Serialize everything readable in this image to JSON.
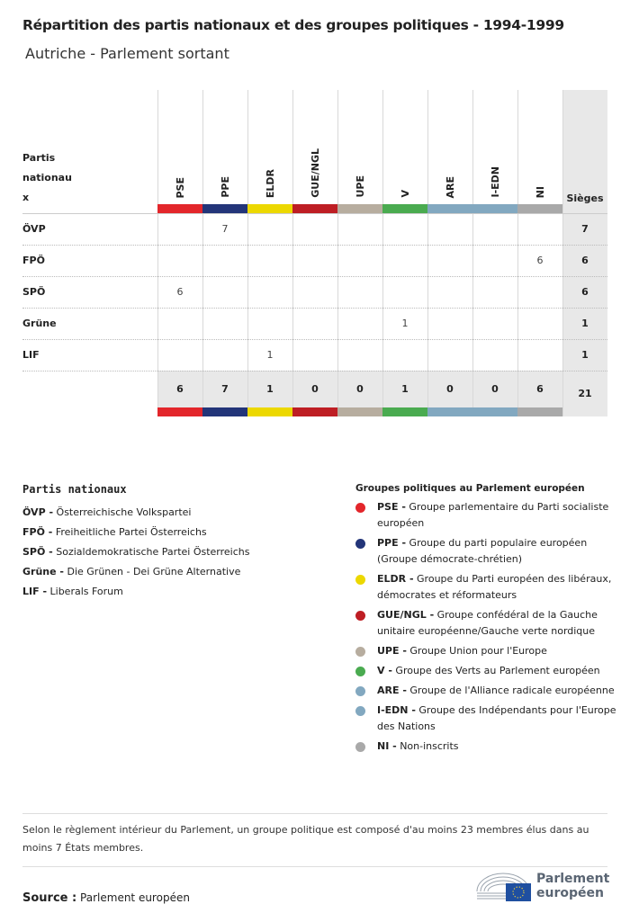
{
  "title": "Répartition des partis nationaux et des groupes politiques - 1994-1999",
  "subtitle": "Autriche - Parlement sortant",
  "table": {
    "row_header": "Partis nationau x",
    "seats_header": "Sièges",
    "groups": [
      {
        "code": "PSE",
        "color": "#e3262b"
      },
      {
        "code": "PPE",
        "color": "#233579"
      },
      {
        "code": "ELDR",
        "color": "#ecd800"
      },
      {
        "code": "GUE/NGL",
        "color": "#be1e24"
      },
      {
        "code": "UPE",
        "color": "#b7ad9f"
      },
      {
        "code": "V",
        "color": "#4aab50"
      },
      {
        "code": "ARE",
        "color": "#82a8c0"
      },
      {
        "code": "I-EDN",
        "color": "#82a8c0"
      },
      {
        "code": "NI",
        "color": "#a9a9a9"
      }
    ],
    "rows": [
      {
        "party": "ÖVP",
        "values": [
          "",
          "7",
          "",
          "",
          "",
          "",
          "",
          "",
          ""
        ],
        "seats": "7"
      },
      {
        "party": "FPÖ",
        "values": [
          "",
          "",
          "",
          "",
          "",
          "",
          "",
          "",
          "6"
        ],
        "seats": "6"
      },
      {
        "party": "SPÖ",
        "values": [
          "6",
          "",
          "",
          "",
          "",
          "",
          "",
          "",
          ""
        ],
        "seats": "6"
      },
      {
        "party": "Grüne",
        "values": [
          "",
          "",
          "",
          "",
          "",
          "1",
          "",
          "",
          ""
        ],
        "seats": "1"
      },
      {
        "party": "LIF",
        "values": [
          "",
          "",
          "1",
          "",
          "",
          "",
          "",
          "",
          ""
        ],
        "seats": "1"
      }
    ],
    "totals": [
      "6",
      "7",
      "1",
      "0",
      "0",
      "1",
      "0",
      "0",
      "6"
    ],
    "grand_total": "21"
  },
  "legend_parties": {
    "title": "Partis nationaux",
    "items": [
      {
        "abbr": "ÖVP -",
        "name": "Österreichische Volkspartei"
      },
      {
        "abbr": "FPÖ -",
        "name": "Freiheitliche Partei Österreichs"
      },
      {
        "abbr": "SPÖ -",
        "name": "Sozialdemokratische Partei Österreichs"
      },
      {
        "abbr": "Grüne -",
        "name": "Die Grünen - Dei Grüne Alternative"
      },
      {
        "abbr": "LIF -",
        "name": "Liberals Forum"
      }
    ]
  },
  "legend_groups": {
    "title": "Groupes politiques au Parlement européen",
    "items": [
      {
        "abbr": "PSE -",
        "name": "Groupe parlementaire du Parti socialiste européen",
        "color": "#e3262b"
      },
      {
        "abbr": "PPE -",
        "name": "Groupe du parti populaire européen (Groupe démocrate-chrétien)",
        "color": "#233579"
      },
      {
        "abbr": "ELDR -",
        "name": "Groupe du Parti européen des libéraux, démocrates et réformateurs",
        "color": "#ecd800"
      },
      {
        "abbr": "GUE/NGL -",
        "name": "Groupe confédéral de la Gauche unitaire européenne/Gauche verte nordique",
        "color": "#be1e24"
      },
      {
        "abbr": "UPE -",
        "name": "Groupe Union pour l'Europe",
        "color": "#b7ad9f"
      },
      {
        "abbr": "V -",
        "name": "Groupe des Verts au Parlement européen",
        "color": "#4aab50"
      },
      {
        "abbr": "ARE -",
        "name": "Groupe de l'Alliance radicale européenne",
        "color": "#82a8c0"
      },
      {
        "abbr": "I-EDN -",
        "name": "Groupe des Indépendants pour l'Europe des Nations",
        "color": "#82a8c0"
      },
      {
        "abbr": "NI -",
        "name": "Non-inscrits",
        "color": "#a9a9a9"
      }
    ]
  },
  "note": "Selon le règlement intérieur du Parlement, un groupe politique est composé d'au moins 23 membres élus dans au moins 7 États membres.",
  "source": {
    "label": "Source :",
    "value": "Parlement européen"
  },
  "logo": {
    "line1": "Parlement",
    "line2": "européen"
  }
}
